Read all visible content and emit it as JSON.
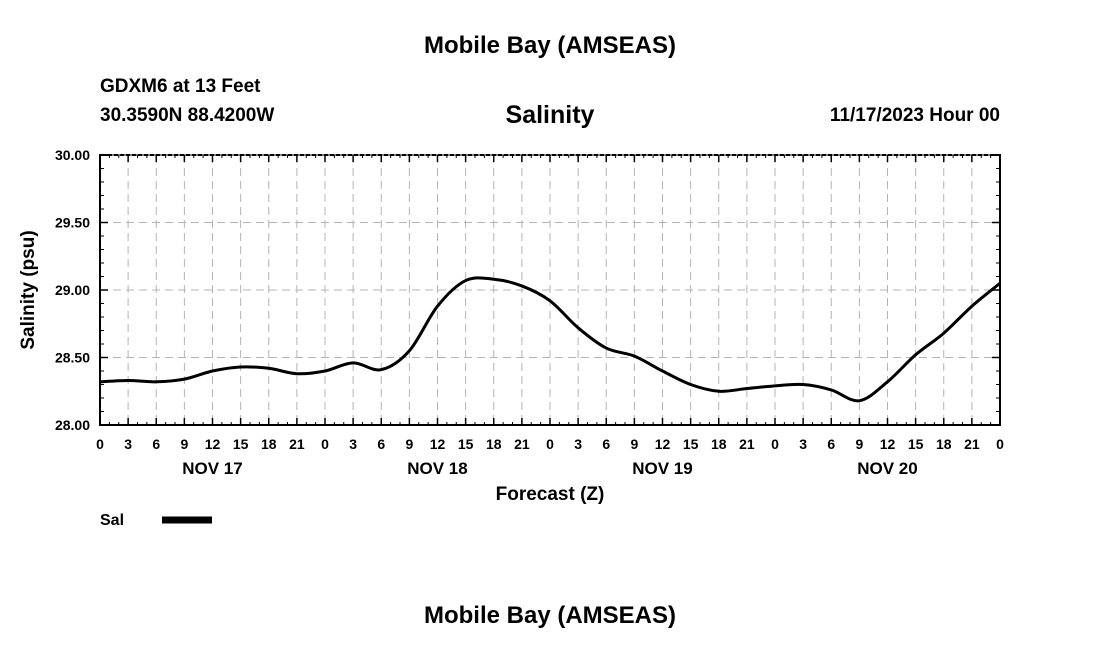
{
  "header": {
    "title": "Mobile Bay (AMSEAS)",
    "station": "GDXM6 at 13 Feet",
    "coords": "30.3590N  88.4200W",
    "variable": "Salinity",
    "timestamp": "11/17/2023 Hour 00"
  },
  "footer": {
    "title": "Mobile Bay (AMSEAS)"
  },
  "colors": {
    "line": "#000000",
    "grid": "#b4b4b4",
    "frame": "#000000"
  },
  "chart_data": {
    "type": "line",
    "title": "Salinity",
    "xlabel": "Forecast (Z)",
    "ylabel": "Salinity (psu)",
    "ylim": [
      28.0,
      30.0
    ],
    "xlim": [
      0,
      96
    ],
    "x_unit": "forecast hour",
    "grid": true,
    "legend": {
      "position": "bottom-left",
      "entries": [
        "Sal"
      ]
    },
    "y_ticks": [
      "28.00",
      "28.50",
      "29.00",
      "29.50",
      "30.00"
    ],
    "x_tick_labels": [
      "0",
      "3",
      "6",
      "9",
      "12",
      "15",
      "18",
      "21",
      "0",
      "3",
      "6",
      "9",
      "12",
      "15",
      "18",
      "21",
      "0",
      "3",
      "6",
      "9",
      "12",
      "15",
      "18",
      "21",
      "0",
      "3",
      "6",
      "9",
      "12",
      "15",
      "18",
      "21",
      "0"
    ],
    "day_labels": [
      "NOV 17",
      "NOV 18",
      "NOV 19",
      "NOV 20"
    ],
    "series": [
      {
        "name": "Sal",
        "x": [
          0,
          3,
          6,
          9,
          12,
          15,
          18,
          21,
          24,
          27,
          30,
          33,
          36,
          39,
          42,
          45,
          48,
          51,
          54,
          57,
          60,
          63,
          66,
          69,
          72,
          75,
          78,
          81,
          84,
          87,
          90,
          93,
          96
        ],
        "y": [
          28.32,
          28.33,
          28.32,
          28.34,
          28.4,
          28.43,
          28.42,
          28.38,
          28.4,
          28.46,
          28.41,
          28.55,
          28.88,
          29.07,
          29.08,
          29.03,
          28.92,
          28.72,
          28.57,
          28.51,
          28.4,
          28.3,
          28.25,
          28.27,
          28.29,
          28.3,
          28.26,
          28.18,
          28.32,
          28.52,
          28.68,
          28.88,
          29.05
        ]
      }
    ]
  }
}
